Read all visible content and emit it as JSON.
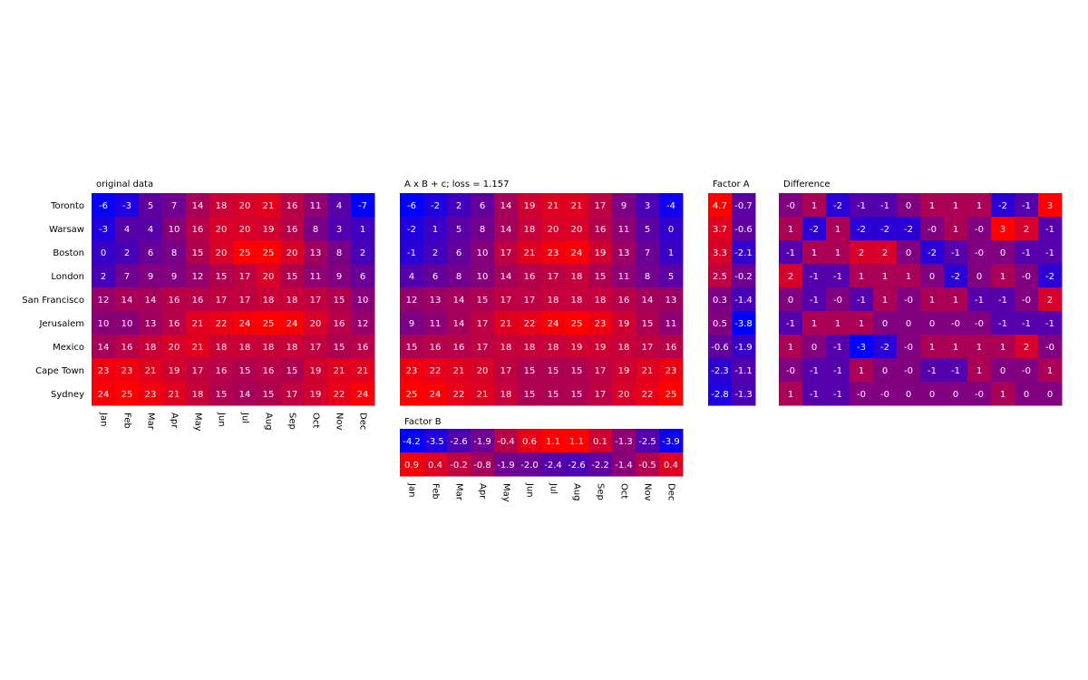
{
  "chart_data": [
    {
      "type": "heatmap",
      "title": "original data",
      "rows": [
        "Toronto",
        "Warsaw",
        "Boston",
        "London",
        "San Francisco",
        "Jerusalem",
        "Mexico",
        "Cape Town",
        "Sydney"
      ],
      "columns": [
        "Jan",
        "Feb",
        "Mar",
        "Apr",
        "May",
        "Jun",
        "Jul",
        "Aug",
        "Sep",
        "Oct",
        "Nov",
        "Dec"
      ],
      "values": [
        [
          -6,
          -3,
          5,
          7,
          14,
          18,
          20,
          21,
          16,
          11,
          4,
          -7
        ],
        [
          -3,
          4,
          4,
          10,
          16,
          20,
          20,
          19,
          16,
          8,
          3,
          1
        ],
        [
          0,
          2,
          6,
          8,
          15,
          20,
          25,
          25,
          20,
          13,
          8,
          2
        ],
        [
          2,
          7,
          9,
          9,
          12,
          15,
          17,
          20,
          15,
          11,
          9,
          6
        ],
        [
          12,
          14,
          14,
          16,
          16,
          17,
          17,
          18,
          18,
          17,
          15,
          10
        ],
        [
          10,
          10,
          13,
          16,
          21,
          22,
          24,
          25,
          24,
          20,
          16,
          12
        ],
        [
          14,
          16,
          18,
          20,
          21,
          18,
          18,
          18,
          18,
          17,
          15,
          16
        ],
        [
          23,
          23,
          21,
          19,
          17,
          16,
          15,
          16,
          15,
          19,
          21,
          21
        ],
        [
          24,
          25,
          23,
          21,
          18,
          15,
          14,
          15,
          17,
          19,
          22,
          24
        ]
      ],
      "labels": [
        [
          "-6",
          "-3",
          "5",
          "7",
          "14",
          "18",
          "20",
          "21",
          "16",
          "11",
          "4",
          "-7"
        ],
        [
          "-3",
          "4",
          "4",
          "10",
          "16",
          "20",
          "20",
          "19",
          "16",
          "8",
          "3",
          "1"
        ],
        [
          "0",
          "2",
          "6",
          "8",
          "15",
          "20",
          "25",
          "25",
          "20",
          "13",
          "8",
          "2"
        ],
        [
          "2",
          "7",
          "9",
          "9",
          "12",
          "15",
          "17",
          "20",
          "15",
          "11",
          "9",
          "6"
        ],
        [
          "12",
          "14",
          "14",
          "16",
          "16",
          "17",
          "17",
          "18",
          "18",
          "17",
          "15",
          "10"
        ],
        [
          "10",
          "10",
          "13",
          "16",
          "21",
          "22",
          "24",
          "25",
          "24",
          "20",
          "16",
          "12"
        ],
        [
          "14",
          "16",
          "18",
          "20",
          "21",
          "18",
          "18",
          "18",
          "18",
          "17",
          "15",
          "16"
        ],
        [
          "23",
          "23",
          "21",
          "19",
          "17",
          "16",
          "15",
          "16",
          "15",
          "19",
          "21",
          "21"
        ],
        [
          "24",
          "25",
          "23",
          "21",
          "18",
          "15",
          "14",
          "15",
          "17",
          "19",
          "22",
          "24"
        ]
      ],
      "vmin": -7,
      "vmax": 25
    },
    {
      "type": "heatmap",
      "title": "A x B + c; loss = 1.157",
      "columns": [
        "Jan",
        "Feb",
        "Mar",
        "Apr",
        "May",
        "Jun",
        "Jul",
        "Aug",
        "Sep",
        "Oct",
        "Nov",
        "Dec"
      ],
      "values": [
        [
          -6,
          -2,
          2,
          6,
          14,
          19,
          21,
          21,
          17,
          9,
          3,
          -4
        ],
        [
          -2,
          1,
          5,
          8,
          14,
          18,
          20,
          20,
          16,
          11,
          5,
          0
        ],
        [
          -1,
          2,
          6,
          10,
          17,
          21,
          23,
          24,
          19,
          13,
          7,
          1
        ],
        [
          4,
          6,
          8,
          10,
          14,
          16,
          17,
          18,
          15,
          11,
          8,
          5
        ],
        [
          12,
          13,
          14,
          15,
          17,
          17,
          18,
          18,
          18,
          16,
          14,
          13
        ],
        [
          9,
          11,
          14,
          17,
          21,
          22,
          24,
          25,
          23,
          19,
          15,
          11
        ],
        [
          15,
          16,
          16,
          17,
          18,
          18,
          18,
          19,
          19,
          18,
          17,
          16
        ],
        [
          23,
          22,
          21,
          20,
          17,
          15,
          15,
          15,
          17,
          19,
          21,
          23
        ],
        [
          25,
          24,
          22,
          21,
          18,
          15,
          15,
          15,
          17,
          20,
          22,
          25
        ]
      ],
      "labels": [
        [
          "-6",
          "-2",
          "2",
          "6",
          "14",
          "19",
          "21",
          "21",
          "17",
          "9",
          "3",
          "-4"
        ],
        [
          "-2",
          "1",
          "5",
          "8",
          "14",
          "18",
          "20",
          "20",
          "16",
          "11",
          "5",
          "0"
        ],
        [
          "-1",
          "2",
          "6",
          "10",
          "17",
          "21",
          "23",
          "24",
          "19",
          "13",
          "7",
          "1"
        ],
        [
          "4",
          "6",
          "8",
          "10",
          "14",
          "16",
          "17",
          "18",
          "15",
          "11",
          "8",
          "5"
        ],
        [
          "12",
          "13",
          "14",
          "15",
          "17",
          "17",
          "18",
          "18",
          "18",
          "16",
          "14",
          "13"
        ],
        [
          "9",
          "11",
          "14",
          "17",
          "21",
          "22",
          "24",
          "25",
          "23",
          "19",
          "15",
          "11"
        ],
        [
          "15",
          "16",
          "16",
          "17",
          "18",
          "18",
          "18",
          "19",
          "19",
          "18",
          "17",
          "16"
        ],
        [
          "23",
          "22",
          "21",
          "20",
          "17",
          "15",
          "15",
          "15",
          "17",
          "19",
          "21",
          "23"
        ],
        [
          "25",
          "24",
          "22",
          "21",
          "18",
          "15",
          "15",
          "15",
          "17",
          "20",
          "22",
          "25"
        ]
      ],
      "vmin": -6,
      "vmax": 25
    },
    {
      "type": "heatmap",
      "title": "Factor A",
      "values": [
        [
          4.7,
          -0.7
        ],
        [
          3.7,
          -0.6
        ],
        [
          3.3,
          -2.1
        ],
        [
          2.5,
          -0.2
        ],
        [
          0.3,
          -1.4
        ],
        [
          0.5,
          -3.8
        ],
        [
          -0.6,
          -1.9
        ],
        [
          -2.3,
          -1.1
        ],
        [
          -2.8,
          -1.3
        ]
      ],
      "labels": [
        [
          "4.7",
          "-0.7"
        ],
        [
          "3.7",
          "-0.6"
        ],
        [
          "3.3",
          "-2.1"
        ],
        [
          "2.5",
          "-0.2"
        ],
        [
          "0.3",
          "-1.4"
        ],
        [
          "0.5",
          "-3.8"
        ],
        [
          "-0.6",
          "-1.9"
        ],
        [
          "-2.3",
          "-1.1"
        ],
        [
          "-2.8",
          "-1.3"
        ]
      ],
      "vmin": -3.8,
      "vmax": 4.7
    },
    {
      "type": "heatmap",
      "title": "Difference",
      "values": [
        [
          0,
          1,
          -2,
          -1,
          -1,
          0,
          1,
          1,
          1,
          -2,
          -1,
          3
        ],
        [
          1,
          -2,
          1,
          -2,
          -2,
          -2,
          0,
          1,
          0,
          3,
          2,
          -1
        ],
        [
          -1,
          1,
          1,
          2,
          2,
          0,
          -2,
          -1,
          0,
          0,
          -1,
          -1
        ],
        [
          2,
          -1,
          -1,
          1,
          1,
          1,
          0,
          -2,
          0,
          1,
          0,
          -2
        ],
        [
          0,
          -1,
          0,
          -1,
          1,
          0,
          1,
          1,
          -1,
          -1,
          0,
          2
        ],
        [
          -1,
          1,
          1,
          1,
          0,
          0,
          0,
          0,
          0,
          -1,
          -1,
          -1
        ],
        [
          1,
          0,
          -1,
          -3,
          -2,
          0,
          1,
          1,
          1,
          1,
          2,
          0
        ],
        [
          0,
          -1,
          -1,
          1,
          0,
          0,
          -1,
          -1,
          1,
          0,
          0,
          1
        ],
        [
          1,
          -1,
          -1,
          0,
          0,
          0,
          0,
          0,
          0,
          1,
          0,
          0
        ]
      ],
      "labels": [
        [
          "-0",
          "1",
          "-2",
          "-1",
          "-1",
          "0",
          "1",
          "1",
          "1",
          "-2",
          "-1",
          "3"
        ],
        [
          "1",
          "-2",
          "1",
          "-2",
          "-2",
          "-2",
          "-0",
          "1",
          "-0",
          "3",
          "2",
          "-1"
        ],
        [
          "-1",
          "1",
          "1",
          "2",
          "2",
          "0",
          "-2",
          "-1",
          "-0",
          "0",
          "-1",
          "-1"
        ],
        [
          "2",
          "-1",
          "-1",
          "1",
          "1",
          "1",
          "0",
          "-2",
          "0",
          "1",
          "-0",
          "-2"
        ],
        [
          "0",
          "-1",
          "-0",
          "-1",
          "1",
          "-0",
          "1",
          "1",
          "-1",
          "-1",
          "-0",
          "2"
        ],
        [
          "-1",
          "1",
          "1",
          "1",
          "0",
          "0",
          "0",
          "-0",
          "-0",
          "-1",
          "-1",
          "-1"
        ],
        [
          "1",
          "0",
          "-1",
          "-3",
          "-2",
          "-0",
          "1",
          "1",
          "1",
          "1",
          "2",
          "-0"
        ],
        [
          "-0",
          "-1",
          "-1",
          "1",
          "0",
          "-0",
          "-1",
          "-1",
          "1",
          "0",
          "-0",
          "1"
        ],
        [
          "1",
          "-1",
          "-1",
          "-0",
          "-0",
          "0",
          "0",
          "0",
          "-0",
          "1",
          "0",
          "0"
        ]
      ],
      "vmin": -3,
      "vmax": 3
    },
    {
      "type": "heatmap",
      "title": "Factor B",
      "columns": [
        "Jan",
        "Feb",
        "Mar",
        "Apr",
        "May",
        "Jun",
        "Jul",
        "Aug",
        "Sep",
        "Oct",
        "Nov",
        "Dec"
      ],
      "values": [
        [
          -4.2,
          -3.5,
          -2.6,
          -1.9,
          -0.4,
          0.6,
          1.1,
          1.1,
          0.1,
          -1.3,
          -2.5,
          -3.9
        ],
        [
          0.9,
          0.4,
          -0.2,
          -0.8,
          -1.9,
          -2.0,
          -2.4,
          -2.6,
          -2.2,
          -1.4,
          -0.5,
          0.4
        ]
      ],
      "labels": [
        [
          "-4.2",
          "-3.5",
          "-2.6",
          "-1.9",
          "-0.4",
          "0.6",
          "1.1",
          "1.1",
          "0.1",
          "-1.3",
          "-2.5",
          "-3.9"
        ],
        [
          "0.9",
          "0.4",
          "-0.2",
          "-0.8",
          "-1.9",
          "-2.0",
          "-2.4",
          "-2.6",
          "-2.2",
          "-1.4",
          "-0.5",
          "0.4"
        ]
      ],
      "vmin": -4.2,
      "vmax": 1.1
    }
  ],
  "colors": {
    "low": "#0000ff",
    "high": "#ff0000",
    "text": "#ffffff"
  }
}
